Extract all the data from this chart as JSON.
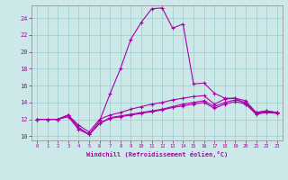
{
  "xlabel": "Windchill (Refroidissement éolien,°C)",
  "background_color": "#cce8e8",
  "grid_color": "#99cccc",
  "line_color": "#aa00aa",
  "spine_color": "#888888",
  "xlim": [
    -0.5,
    23.5
  ],
  "ylim": [
    9.5,
    25.5
  ],
  "xticks": [
    0,
    1,
    2,
    3,
    4,
    5,
    6,
    7,
    8,
    9,
    10,
    11,
    12,
    13,
    14,
    15,
    16,
    17,
    18,
    19,
    20,
    21,
    22,
    23
  ],
  "yticks": [
    10,
    12,
    14,
    16,
    18,
    20,
    22,
    24
  ],
  "series": [
    [
      12.0,
      12.0,
      12.0,
      12.3,
      10.8,
      10.2,
      11.8,
      15.0,
      18.0,
      21.5,
      23.5,
      25.1,
      25.2,
      22.8,
      23.3,
      16.2,
      16.3,
      15.1,
      14.5,
      14.5,
      13.8,
      12.8,
      13.0,
      12.8
    ],
    [
      12.0,
      12.0,
      12.0,
      12.5,
      11.3,
      10.5,
      12.0,
      12.5,
      12.8,
      13.2,
      13.5,
      13.8,
      14.0,
      14.3,
      14.5,
      14.7,
      14.8,
      13.8,
      14.4,
      14.5,
      14.2,
      12.8,
      13.0,
      12.8
    ],
    [
      12.0,
      12.0,
      12.0,
      12.5,
      11.0,
      10.2,
      11.5,
      12.2,
      12.4,
      12.6,
      12.8,
      13.0,
      13.2,
      13.5,
      13.8,
      14.0,
      14.2,
      13.5,
      14.0,
      14.3,
      14.0,
      12.7,
      12.9,
      12.8
    ],
    [
      12.0,
      12.0,
      12.0,
      12.5,
      11.0,
      10.2,
      11.5,
      12.1,
      12.3,
      12.5,
      12.7,
      12.9,
      13.1,
      13.4,
      13.6,
      13.8,
      14.0,
      13.3,
      13.8,
      14.1,
      13.8,
      12.6,
      12.8,
      12.7
    ]
  ]
}
